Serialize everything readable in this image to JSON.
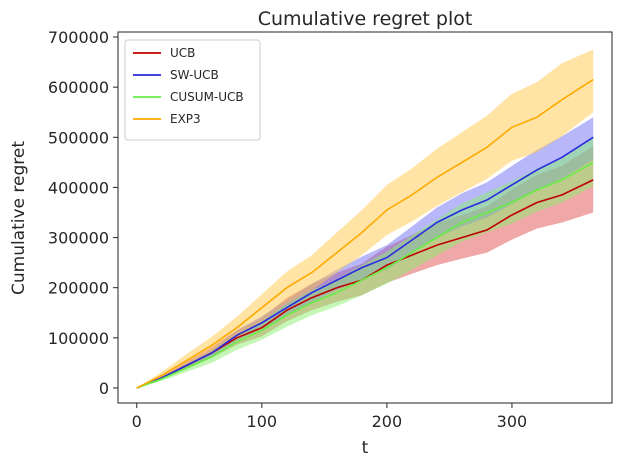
{
  "chart_data": {
    "type": "line",
    "title": "Cumulative regret plot",
    "xlabel": "t",
    "ylabel": "Cumulative regret",
    "xlim": [
      -15,
      380
    ],
    "ylim": [
      -30000,
      710000
    ],
    "xticks": [
      0,
      100,
      200,
      300
    ],
    "yticks": [
      0,
      100000,
      200000,
      300000,
      400000,
      500000,
      600000,
      700000
    ],
    "grid": false,
    "legend_position": "top-left",
    "x": [
      0,
      20,
      40,
      60,
      80,
      100,
      120,
      140,
      160,
      180,
      200,
      220,
      240,
      260,
      280,
      300,
      320,
      340,
      365
    ],
    "series": [
      {
        "name": "UCB",
        "color": "#c00000",
        "band_color": "#e05050",
        "values": [
          0,
          20000,
          45000,
          70000,
          100000,
          120000,
          155000,
          180000,
          200000,
          215000,
          245000,
          265000,
          285000,
          300000,
          315000,
          345000,
          370000,
          385000,
          415000
        ],
        "lower": [
          0,
          17000,
          38000,
          60000,
          86000,
          103000,
          133000,
          155000,
          172000,
          185000,
          210000,
          228000,
          245000,
          258000,
          270000,
          296000,
          318000,
          330000,
          350000
        ],
        "upper": [
          0,
          24000,
          53000,
          82000,
          115000,
          140000,
          180000,
          208000,
          230000,
          248000,
          282000,
          305000,
          328000,
          345000,
          362000,
          396000,
          425000,
          443000,
          482000
        ]
      },
      {
        "name": "SW-UCB",
        "color": "#2a2ae0",
        "band_color": "#6f6ff5",
        "values": [
          0,
          20000,
          45000,
          70000,
          105000,
          130000,
          160000,
          190000,
          215000,
          240000,
          260000,
          295000,
          330000,
          355000,
          375000,
          405000,
          435000,
          460000,
          500000
        ],
        "lower": [
          0,
          18000,
          40000,
          63000,
          95000,
          118000,
          145000,
          172000,
          195000,
          218000,
          236000,
          268000,
          300000,
          322000,
          340000,
          367000,
          395000,
          418000,
          455000
        ],
        "upper": [
          0,
          22000,
          50000,
          77000,
          115000,
          143000,
          176000,
          208000,
          236000,
          262000,
          285000,
          322000,
          360000,
          388000,
          410000,
          443000,
          475000,
          502000,
          540000
        ]
      },
      {
        "name": "CUSUM-UCB",
        "color": "#66ee44",
        "band_color": "#8bf070",
        "values": [
          0,
          18000,
          40000,
          62000,
          92000,
          115000,
          145000,
          170000,
          190000,
          215000,
          240000,
          270000,
          300000,
          330000,
          350000,
          370000,
          395000,
          415000,
          450000
        ],
        "lower": [
          0,
          14000,
          32000,
          50000,
          76000,
          96000,
          122000,
          145000,
          163000,
          185000,
          208000,
          236000,
          264000,
          292000,
          310000,
          328000,
          352000,
          370000,
          402000
        ],
        "upper": [
          0,
          22000,
          48000,
          74000,
          108000,
          134000,
          168000,
          195000,
          217000,
          245000,
          272000,
          304000,
          336000,
          368000,
          390000,
          412000,
          438000,
          460000,
          498000
        ]
      },
      {
        "name": "EXP3",
        "color": "#ffaa00",
        "band_color": "#ffc94d",
        "values": [
          0,
          25000,
          55000,
          85000,
          120000,
          160000,
          200000,
          230000,
          270000,
          310000,
          355000,
          385000,
          420000,
          450000,
          480000,
          520000,
          540000,
          575000,
          615000
        ],
        "lower": [
          0,
          18000,
          42000,
          68000,
          98000,
          133000,
          168000,
          195000,
          230000,
          265000,
          305000,
          332000,
          363000,
          390000,
          417000,
          453000,
          470000,
          502000,
          550000
        ],
        "upper": [
          0,
          32000,
          68000,
          102000,
          142000,
          187000,
          232000,
          265000,
          310000,
          355000,
          405000,
          438000,
          477000,
          510000,
          543000,
          587000,
          610000,
          648000,
          675000
        ]
      }
    ]
  }
}
